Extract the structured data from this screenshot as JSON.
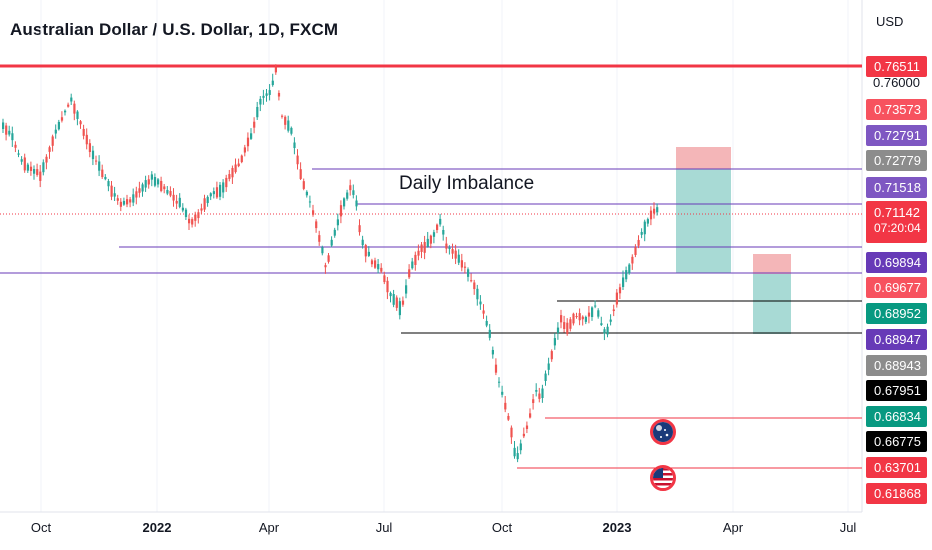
{
  "header": {
    "title": "Australian Dollar / U.S. Dollar, 1D, FXCM",
    "currency": "USD"
  },
  "annotations": {
    "imbalance_label": "Daily Imbalance"
  },
  "icons": {
    "event_flag_1": "australia-flag-icon",
    "event_flag_2": "us-flag-icon"
  },
  "colors": {
    "up": "#26a69a",
    "down": "#ef5350",
    "red_line": "#f23645",
    "purple": "#673ab7",
    "profit_zone": "#b2dfdb",
    "loss_zone": "#f4b6b8"
  },
  "price_labels": [
    {
      "value": "0.76511",
      "color": "#f23645"
    },
    {
      "value": "0.73573",
      "color": "#f7525f"
    },
    {
      "value": "0.72791",
      "color": "#7e57c2"
    },
    {
      "value": "0.72779",
      "color": "#8c8c8c"
    },
    {
      "value": "0.71518",
      "color": "#7e57c2"
    },
    {
      "value": "0.71142",
      "sub": "07:20:04",
      "color": "#f23645"
    },
    {
      "value": "0.69894",
      "color": "#673ab7"
    },
    {
      "value": "0.69677",
      "color": "#f7525f"
    },
    {
      "value": "0.68952",
      "color": "#089981"
    },
    {
      "value": "0.68947",
      "color": "#673ab7"
    },
    {
      "value": "0.68943",
      "color": "#8c8c8c"
    },
    {
      "value": "0.67951",
      "color": "#000000"
    },
    {
      "value": "0.66834",
      "color": "#089981"
    },
    {
      "value": "0.66775",
      "color": "#000000"
    },
    {
      "value": "0.63701",
      "color": "#f23645"
    },
    {
      "value": "0.61868",
      "color": "#f23645"
    }
  ],
  "axis_price_text": "0.76000",
  "chart_data": {
    "type": "candlestick",
    "title": "Australian Dollar / U.S. Dollar, 1D, FXCM",
    "x_ticks": [
      {
        "label": "Oct",
        "bold": false
      },
      {
        "label": "2022",
        "bold": true
      },
      {
        "label": "Apr",
        "bold": false
      },
      {
        "label": "Jul",
        "bold": false
      },
      {
        "label": "Oct",
        "bold": false
      },
      {
        "label": "2023",
        "bold": true
      },
      {
        "label": "Apr",
        "bold": false
      },
      {
        "label": "Jul",
        "bold": false
      }
    ],
    "y_unit": "USD",
    "levels": [
      {
        "name": "high-line",
        "value": 0.76511
      },
      {
        "name": "imbalance-top",
        "value": 0.72779
      },
      {
        "name": "imbalance-bottom",
        "value": 0.71518
      },
      {
        "name": "support-2022",
        "value": 0.69894
      },
      {
        "name": "support-purple",
        "value": 0.68947
      },
      {
        "name": "box-top",
        "value": 0.68952
      },
      {
        "name": "box-bottom",
        "value": 0.67951
      },
      {
        "name": "event-level",
        "value": 0.66834
      },
      {
        "name": "low-line",
        "value": 0.63701
      }
    ],
    "last_price": 0.71142,
    "countdown": "07:20:04"
  }
}
